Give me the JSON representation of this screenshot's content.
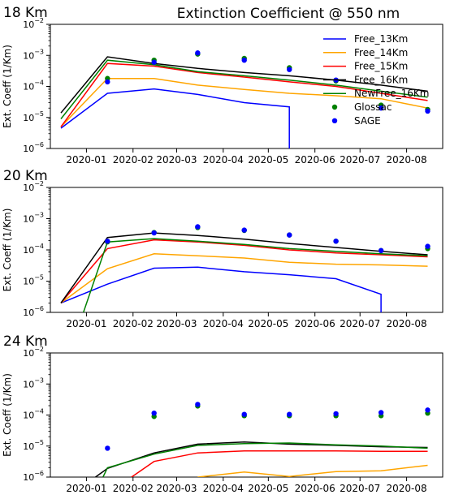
{
  "figure": {
    "title": "Extinction Coefficient @ 550 nm",
    "ylabel": "Ext. Coeff (1/Km)"
  },
  "chart_data": [
    {
      "type": "line",
      "annotation": "18 Km",
      "ylabel": "Ext. Coeff (1/Km)",
      "yscale": "log",
      "ylim": [
        1e-06,
        0.01
      ],
      "xlim": [
        "2019-12-08",
        "2020-08-25"
      ],
      "xticks": [
        "2020-01",
        "2020-02",
        "2020-03",
        "2020-04",
        "2020-05",
        "2020-06",
        "2020-07",
        "2020-08"
      ],
      "legend": {
        "placement": "top-right",
        "entries": [
          "Free_13Km",
          "Free_14Km",
          "Free_15Km",
          "Free_16Km",
          "NewFree_16Km",
          "Glossac",
          "SAGE"
        ]
      },
      "series": [
        {
          "name": "Free_13Km",
          "color": "#0000ff",
          "style": "line",
          "x": [
            "2019-12-15",
            "2020-01-15",
            "2020-02-15",
            "2020-03-15",
            "2020-04-15",
            "2020-05-15",
            "2020-05-15"
          ],
          "y": [
            4.5e-06,
            6e-05,
            8.3e-05,
            5.5e-05,
            3e-05,
            2.2e-05,
            1e-06
          ]
        },
        {
          "name": "Free_14Km",
          "color": "#ffa500",
          "style": "line",
          "x": [
            "2019-12-15",
            "2020-01-15",
            "2020-02-15",
            "2020-03-15",
            "2020-04-15",
            "2020-05-15",
            "2020-06-15",
            "2020-07-15",
            "2020-08-15"
          ],
          "y": [
            5e-06,
            0.00018,
            0.00018,
            0.00011,
            8e-05,
            6e-05,
            5e-05,
            4e-05,
            2e-05
          ]
        },
        {
          "name": "Free_15Km",
          "color": "#ff0000",
          "style": "line",
          "x": [
            "2019-12-15",
            "2020-01-15",
            "2020-02-15",
            "2020-03-15",
            "2020-04-15",
            "2020-05-15",
            "2020-06-15",
            "2020-07-15",
            "2020-08-15"
          ],
          "y": [
            5e-06,
            0.00055,
            0.00045,
            0.00028,
            0.0002,
            0.00014,
            0.0001,
            6e-05,
            3.5e-05
          ]
        },
        {
          "name": "Free_16Km",
          "color": "#000000",
          "style": "line",
          "x": [
            "2019-12-15",
            "2020-01-15",
            "2020-02-15",
            "2020-03-15",
            "2020-04-15",
            "2020-05-15",
            "2020-06-15",
            "2020-07-15",
            "2020-08-15"
          ],
          "y": [
            1.4e-05,
            0.0009,
            0.00055,
            0.00038,
            0.00028,
            0.00022,
            0.00016,
            0.00011,
            7e-05
          ]
        },
        {
          "name": "NewFree_16Km",
          "color": "#008000",
          "style": "line",
          "x": [
            "2019-12-15",
            "2020-01-15",
            "2020-02-15",
            "2020-03-15",
            "2020-04-15",
            "2020-05-15",
            "2020-06-15",
            "2020-07-15",
            "2020-08-15"
          ],
          "y": [
            9e-06,
            0.0007,
            0.0005,
            0.0003,
            0.00022,
            0.00016,
            0.00011,
            7e-05,
            4.5e-05
          ]
        },
        {
          "name": "Glossac",
          "color": "#008000",
          "style": "points",
          "x": [
            "2020-01-15",
            "2020-02-15",
            "2020-03-15",
            "2020-04-15",
            "2020-05-15",
            "2020-06-15",
            "2020-07-15",
            "2020-08-15"
          ],
          "y": [
            0.00018,
            0.0007,
            0.0011,
            0.0008,
            0.0004,
            0.00015,
            2.5e-05,
            1.8e-05
          ]
        },
        {
          "name": "SAGE",
          "color": "#0000ff",
          "style": "points",
          "x": [
            "2020-01-15",
            "2020-02-15",
            "2020-03-15",
            "2020-04-15",
            "2020-05-15",
            "2020-06-15",
            "2020-07-15",
            "2020-08-15"
          ],
          "y": [
            0.00014,
            0.0006,
            0.0012,
            0.0007,
            0.00035,
            0.00016,
            2e-05,
            1.6e-05
          ]
        }
      ]
    },
    {
      "type": "line",
      "annotation": "20 Km",
      "ylabel": "Ext. Coeff (1/Km)",
      "yscale": "log",
      "ylim": [
        1e-06,
        0.01
      ],
      "xlim": [
        "2019-12-08",
        "2020-08-25"
      ],
      "xticks": [
        "2020-01",
        "2020-02",
        "2020-03",
        "2020-04",
        "2020-05",
        "2020-06",
        "2020-07",
        "2020-08"
      ],
      "series": [
        {
          "name": "Free_13Km",
          "color": "#0000ff",
          "style": "line",
          "x": [
            "2019-12-15",
            "2020-01-15",
            "2020-02-15",
            "2020-03-15",
            "2020-04-15",
            "2020-05-15",
            "2020-06-15",
            "2020-07-15",
            "2020-07-15"
          ],
          "y": [
            2e-06,
            8e-06,
            2.6e-05,
            2.8e-05,
            2e-05,
            1.6e-05,
            1.2e-05,
            3.8e-06,
            1e-06
          ]
        },
        {
          "name": "Free_14Km",
          "color": "#ffa500",
          "style": "line",
          "x": [
            "2019-12-15",
            "2020-01-15",
            "2020-02-15",
            "2020-03-15",
            "2020-04-15",
            "2020-05-15",
            "2020-06-15",
            "2020-07-15",
            "2020-08-15"
          ],
          "y": [
            2e-06,
            2.5e-05,
            7.5e-05,
            6.5e-05,
            5.5e-05,
            4e-05,
            3.5e-05,
            3.3e-05,
            3e-05
          ]
        },
        {
          "name": "Free_15Km",
          "color": "#ff0000",
          "style": "line",
          "x": [
            "2019-12-15",
            "2020-01-15",
            "2020-02-15",
            "2020-03-15",
            "2020-04-15",
            "2020-05-15",
            "2020-06-15",
            "2020-07-15",
            "2020-08-15"
          ],
          "y": [
            2e-06,
            0.00011,
            0.00021,
            0.00018,
            0.00014,
            0.0001,
            8e-05,
            7e-05,
            6e-05
          ]
        },
        {
          "name": "Free_16Km",
          "color": "#000000",
          "style": "line",
          "x": [
            "2019-12-15",
            "2020-01-15",
            "2020-02-15",
            "2020-03-15",
            "2020-04-15",
            "2020-05-15",
            "2020-06-15",
            "2020-07-15",
            "2020-08-15"
          ],
          "y": [
            2e-06,
            0.00025,
            0.00035,
            0.00029,
            0.00022,
            0.00016,
            0.00012,
            9e-05,
            7e-05
          ]
        },
        {
          "name": "NewFree_16Km",
          "color": "#008000",
          "style": "line",
          "x": [
            "2019-12-30",
            "2020-01-15",
            "2020-02-15",
            "2020-03-15",
            "2020-04-15",
            "2020-05-15",
            "2020-06-15",
            "2020-07-15",
            "2020-08-15"
          ],
          "y": [
            1e-06,
            0.00018,
            0.00023,
            0.00019,
            0.00015,
            0.00011,
            9e-05,
            7.5e-05,
            6.5e-05
          ]
        },
        {
          "name": "Glossac",
          "color": "#008000",
          "style": "points",
          "x": [
            "2020-01-15",
            "2020-02-15",
            "2020-03-15",
            "2020-04-15",
            "2020-05-15",
            "2020-06-15",
            "2020-07-15",
            "2020-08-15"
          ],
          "y": [
            0.00018,
            0.00036,
            0.00052,
            0.00042,
            0.0003,
            0.00019,
            9.5e-05,
            0.00011
          ]
        },
        {
          "name": "SAGE",
          "color": "#0000ff",
          "style": "points",
          "x": [
            "2020-01-15",
            "2020-02-15",
            "2020-03-15",
            "2020-04-15",
            "2020-05-15",
            "2020-06-15",
            "2020-07-15",
            "2020-08-15"
          ],
          "y": [
            0.00019,
            0.00035,
            0.00055,
            0.00043,
            0.0003,
            0.00019,
            9.5e-05,
            0.00013
          ]
        }
      ]
    },
    {
      "type": "line",
      "annotation": "24 Km",
      "ylabel": "Ext. Coeff (1/Km)",
      "yscale": "log",
      "ylim": [
        1e-06,
        0.01
      ],
      "xlim": [
        "2019-12-08",
        "2020-08-25"
      ],
      "xticks": [
        "2020-01",
        "2020-02",
        "2020-03",
        "2020-04",
        "2020-05",
        "2020-06",
        "2020-07",
        "2020-08"
      ],
      "series": [
        {
          "name": "Free_14Km",
          "color": "#ffa500",
          "style": "line",
          "x": [
            "2020-03-15",
            "2020-04-15",
            "2020-05-15",
            "2020-06-15",
            "2020-07-15",
            "2020-08-15"
          ],
          "y": [
            1e-06,
            1.45e-06,
            1.05e-06,
            1.5e-06,
            1.6e-06,
            2.4e-06
          ]
        },
        {
          "name": "Free_15Km",
          "color": "#ff0000",
          "style": "line",
          "x": [
            "2020-01-31",
            "2020-02-15",
            "2020-03-15",
            "2020-04-15",
            "2020-05-15",
            "2020-06-15",
            "2020-07-15",
            "2020-08-15"
          ],
          "y": [
            1e-06,
            3.2e-06,
            6e-06,
            7e-06,
            7e-06,
            7e-06,
            6.8e-06,
            6.8e-06
          ]
        },
        {
          "name": "Free_16Km",
          "color": "#000000",
          "style": "line",
          "x": [
            "2020-01-07",
            "2020-01-15",
            "2020-02-15",
            "2020-03-15",
            "2020-04-15",
            "2020-05-15",
            "2020-06-15",
            "2020-07-15",
            "2020-08-15"
          ],
          "y": [
            1e-06,
            1.9e-06,
            6e-06,
            1.15e-05,
            1.35e-05,
            1.15e-05,
            1.05e-05,
            9.5e-06,
            9e-06
          ]
        },
        {
          "name": "NewFree_16Km",
          "color": "#008000",
          "style": "line",
          "x": [
            "2020-01-12",
            "2020-01-15",
            "2020-02-15",
            "2020-03-15",
            "2020-04-15",
            "2020-05-15",
            "2020-06-15",
            "2020-07-15",
            "2020-08-15"
          ],
          "y": [
            1e-06,
            2e-06,
            5.5e-06,
            1.05e-05,
            1.2e-05,
            1.25e-05,
            1.1e-05,
            1e-05,
            8.5e-06
          ]
        },
        {
          "name": "Glossac",
          "color": "#008000",
          "style": "points",
          "x": [
            "2020-02-15",
            "2020-03-15",
            "2020-04-15",
            "2020-05-15",
            "2020-06-15",
            "2020-07-15",
            "2020-08-15"
          ],
          "y": [
            9e-05,
            0.000195,
            9.5e-05,
            9.5e-05,
            9.5e-05,
            9.5e-05,
            0.000115
          ]
        },
        {
          "name": "SAGE",
          "color": "#0000ff",
          "style": "points",
          "x": [
            "2020-01-15",
            "2020-02-15",
            "2020-03-15",
            "2020-04-15",
            "2020-05-15",
            "2020-06-15",
            "2020-07-15",
            "2020-08-15"
          ],
          "y": [
            8.5e-06,
            0.000115,
            0.00022,
            0.000105,
            0.000105,
            0.00011,
            0.00012,
            0.000145
          ]
        }
      ]
    }
  ]
}
